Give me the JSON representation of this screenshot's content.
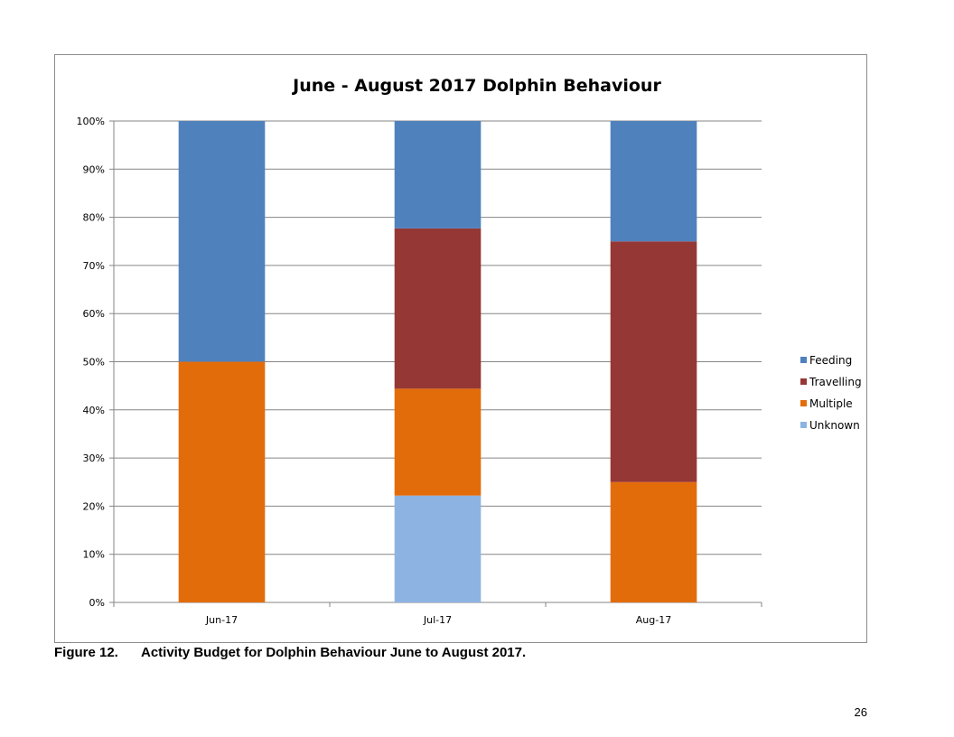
{
  "chart_data": {
    "type": "bar",
    "stacked": true,
    "title": "June - August 2017 Dolphin Behaviour",
    "categories": [
      "Jun-17",
      "Jul-17",
      "Aug-17"
    ],
    "series": [
      {
        "name": "Unknown",
        "color": "#8db3e2",
        "values": [
          0,
          22.2,
          0
        ]
      },
      {
        "name": "Multiple",
        "color": "#e36c0a",
        "values": [
          50,
          22.2,
          25
        ]
      },
      {
        "name": "Travelling",
        "color": "#953735",
        "values": [
          0,
          33.3,
          50
        ]
      },
      {
        "name": "Feeding",
        "color": "#4f81bd",
        "values": [
          50,
          22.3,
          25
        ]
      }
    ],
    "legend_order": [
      "Feeding",
      "Travelling",
      "Multiple",
      "Unknown"
    ],
    "ylim": [
      0,
      100
    ],
    "yticks": [
      "0%",
      "10%",
      "20%",
      "30%",
      "40%",
      "50%",
      "60%",
      "70%",
      "80%",
      "90%",
      "100%"
    ],
    "grid": true,
    "legend_position": "right"
  },
  "caption": {
    "number": "Figure 12.",
    "text": "Activity Budget for Dolphin Behaviour June to August 2017."
  },
  "page_number": "26"
}
